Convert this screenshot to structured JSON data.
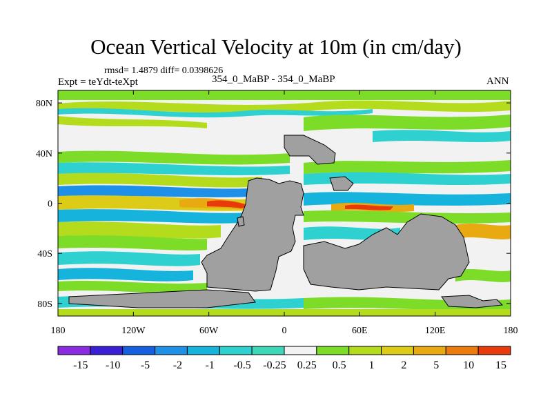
{
  "header": {
    "title": "Ocean Vertical Velocity at 10m (in cm/day)",
    "stats": "rmsd= 1.4879 diff= 0.0398626",
    "experiment": "Expt = teYdt-teXpt",
    "case_info": "354_0_MaBP - 354_0_MaBP",
    "season": "ANN"
  },
  "map": {
    "land_color": "#a0a0a0",
    "lat_labels": [
      "80N",
      "40N",
      "0",
      "40S",
      "80S"
    ],
    "lat_values": [
      80,
      40,
      0,
      -40,
      -80
    ],
    "lon_labels": [
      "180",
      "120W",
      "60W",
      "0",
      "60E",
      "120E",
      "180"
    ],
    "lon_values": [
      -180,
      -120,
      -60,
      0,
      60,
      120,
      180
    ]
  },
  "colorbar": {
    "labels": [
      "-15",
      "-10",
      "-5",
      "-2",
      "-1",
      "-0.5",
      "-0.25",
      "0.25",
      "0.5",
      "1",
      "2",
      "5",
      "10",
      "15"
    ],
    "colors": [
      "#8a2be2",
      "#3a1fd6",
      "#1560e0",
      "#1e90e8",
      "#16b4dc",
      "#2ed0d0",
      "#3ed8b8",
      "#f2f2f2",
      "#7cdc28",
      "#b4dc1c",
      "#dccc18",
      "#e8aa10",
      "#ec7a0c",
      "#e83a0a"
    ]
  }
}
